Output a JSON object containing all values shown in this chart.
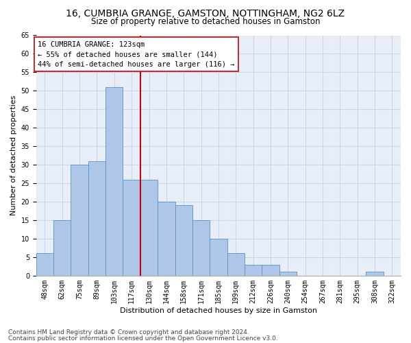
{
  "title1": "16, CUMBRIA GRANGE, GAMSTON, NOTTINGHAM, NG2 6LZ",
  "title2": "Size of property relative to detached houses in Gamston",
  "xlabel": "Distribution of detached houses by size in Gamston",
  "ylabel": "Number of detached properties",
  "categories": [
    "48sqm",
    "62sqm",
    "75sqm",
    "89sqm",
    "103sqm",
    "117sqm",
    "130sqm",
    "144sqm",
    "158sqm",
    "171sqm",
    "185sqm",
    "199sqm",
    "212sqm",
    "226sqm",
    "240sqm",
    "254sqm",
    "267sqm",
    "281sqm",
    "295sqm",
    "308sqm",
    "322sqm"
  ],
  "values": [
    6,
    15,
    30,
    31,
    51,
    26,
    26,
    20,
    19,
    15,
    10,
    6,
    3,
    3,
    1,
    0,
    0,
    0,
    0,
    1,
    0
  ],
  "bar_color": "#aec6e8",
  "bar_edge_color": "#5b8fc9",
  "vline_x": 5.5,
  "vline_color": "#cc0000",
  "annotation_text": "16 CUMBRIA GRANGE: 123sqm\n← 55% of detached houses are smaller (144)\n44% of semi-detached houses are larger (116) →",
  "annotation_box_color": "#ffffff",
  "annotation_box_edge": "#cc0000",
  "ylim": [
    0,
    65
  ],
  "yticks": [
    0,
    5,
    10,
    15,
    20,
    25,
    30,
    35,
    40,
    45,
    50,
    55,
    60,
    65
  ],
  "footer1": "Contains HM Land Registry data © Crown copyright and database right 2024.",
  "footer2": "Contains public sector information licensed under the Open Government Licence v3.0.",
  "title1_fontsize": 10,
  "title2_fontsize": 8.5,
  "xlabel_fontsize": 8,
  "ylabel_fontsize": 8,
  "tick_fontsize": 7,
  "annotation_fontsize": 7.5,
  "footer_fontsize": 6.5,
  "grid_color": "#ccd6e8",
  "bg_color": "#e8eef8"
}
